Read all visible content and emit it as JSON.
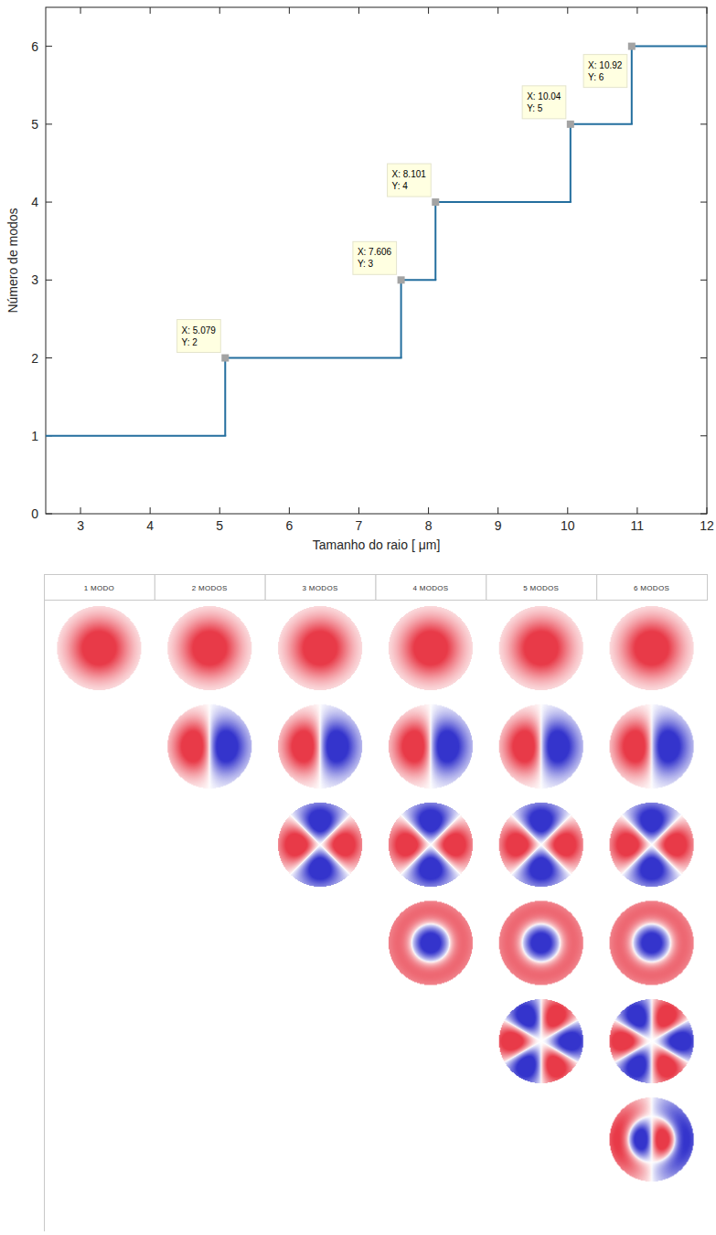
{
  "chart_data": {
    "type": "step",
    "xlabel": "Tamanho do raio [  μm]",
    "ylabel": "Número de modos",
    "x": [
      2.5,
      5.079,
      7.606,
      8.101,
      10.04,
      10.92
    ],
    "values": [
      1,
      2,
      3,
      4,
      5,
      6
    ],
    "color": "#236e9e",
    "xlim": [
      2.5,
      12
    ],
    "ylim": [
      0,
      6.5
    ],
    "xticks": [
      3,
      4,
      5,
      6,
      7,
      8,
      9,
      10,
      11,
      12
    ],
    "yticks": [
      0,
      1,
      2,
      3,
      4,
      5,
      6
    ],
    "grid": false,
    "annotations": [
      {
        "x": 5.079,
        "y": 2,
        "text": [
          "X: 5.079",
          "Y: 2"
        ]
      },
      {
        "x": 7.606,
        "y": 3,
        "text": [
          "X: 7.606",
          "Y: 3"
        ]
      },
      {
        "x": 8.101,
        "y": 4,
        "text": [
          "X: 8.101",
          "Y: 4"
        ]
      },
      {
        "x": 10.04,
        "y": 5,
        "text": [
          "X: 10.04",
          "Y: 5"
        ]
      },
      {
        "x": 10.92,
        "y": 6,
        "text": [
          "X: 10.92",
          "Y: 6"
        ]
      }
    ]
  },
  "mode_table": {
    "headers": [
      "1 MODO",
      "2 MODOS",
      "3 MODOS",
      "4 MODOS",
      "5 MODOS",
      "6 MODOS"
    ]
  }
}
